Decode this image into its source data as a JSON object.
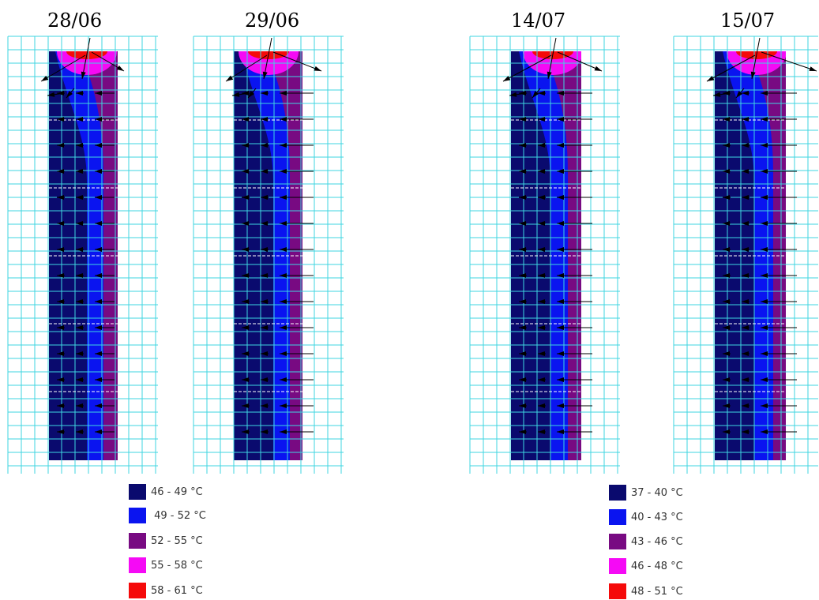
{
  "panels": [
    {
      "date": "28/06",
      "band_index": [
        2,
        3,
        4
      ]
    },
    {
      "date": "29/06",
      "band_index": [
        2,
        3,
        4
      ]
    },
    {
      "date": "14/07",
      "band_index": [
        2,
        3,
        4
      ]
    },
    {
      "date": "15/07",
      "band_index": [
        2,
        3,
        4
      ]
    }
  ],
  "legends": [
    {
      "items": [
        {
          "label": "46 - 49 °C",
          "color": "#0a0a6e"
        },
        {
          "label": " 49 - 52 °C",
          "color": "#0a14f0"
        },
        {
          "label": "52 - 55 °C",
          "color": "#780a82"
        },
        {
          "label": "55 - 58 °C",
          "color": "#f50af5"
        },
        {
          "label": "58 - 61 °C",
          "color": "#f50a0a"
        }
      ]
    },
    {
      "items": [
        {
          "label": "37 - 40 °C",
          "color": "#0a0a6e"
        },
        {
          "label": "40 - 43 °C",
          "color": "#0a14f0"
        },
        {
          "label": "43 - 46 °C",
          "color": "#780a82"
        },
        {
          "label": "46 - 48 °C",
          "color": "#f50af5"
        },
        {
          "label": "48 - 51 °C",
          "color": "#f50a0a"
        }
      ]
    }
  ],
  "colors": {
    "grid": "#3fd6e0",
    "arrow": "#000000"
  }
}
